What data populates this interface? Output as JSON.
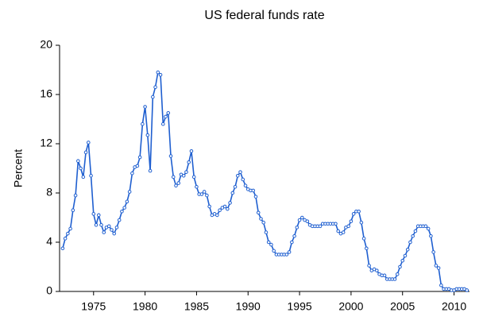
{
  "chart_data": {
    "type": "line",
    "title": "US federal funds rate",
    "y_label": "Percent",
    "x": [
      1972,
      1972.25,
      1972.5,
      1972.75,
      1973,
      1973.25,
      1973.5,
      1973.75,
      1974,
      1974.25,
      1974.5,
      1974.75,
      1975,
      1975.25,
      1975.5,
      1975.75,
      1976,
      1976.25,
      1976.5,
      1976.75,
      1977,
      1977.25,
      1977.5,
      1977.75,
      1978,
      1978.25,
      1978.5,
      1978.75,
      1979,
      1979.25,
      1979.5,
      1979.75,
      1980,
      1980.25,
      1980.5,
      1980.75,
      1981,
      1981.25,
      1981.5,
      1981.75,
      1982,
      1982.25,
      1982.5,
      1982.75,
      1983,
      1983.25,
      1983.5,
      1983.75,
      1984,
      1984.25,
      1984.5,
      1984.75,
      1985,
      1985.25,
      1985.5,
      1985.75,
      1986,
      1986.25,
      1986.5,
      1986.75,
      1987,
      1987.25,
      1987.5,
      1987.75,
      1988,
      1988.25,
      1988.5,
      1988.75,
      1989,
      1989.25,
      1989.5,
      1989.75,
      1990,
      1990.25,
      1990.5,
      1990.75,
      1991,
      1991.25,
      1991.5,
      1991.75,
      1992,
      1992.25,
      1992.5,
      1992.75,
      1993,
      1993.25,
      1993.5,
      1993.75,
      1994,
      1994.25,
      1994.5,
      1994.75,
      1995,
      1995.25,
      1995.5,
      1995.75,
      1996,
      1996.25,
      1996.5,
      1996.75,
      1997,
      1997.25,
      1997.5,
      1997.75,
      1998,
      1998.25,
      1998.5,
      1998.75,
      1999,
      1999.25,
      1999.5,
      1999.75,
      2000,
      2000.25,
      2000.5,
      2000.75,
      2001,
      2001.25,
      2001.5,
      2001.75,
      2002,
      2002.25,
      2002.5,
      2002.75,
      2003,
      2003.25,
      2003.5,
      2003.75,
      2004,
      2004.25,
      2004.5,
      2004.75,
      2005,
      2005.25,
      2005.5,
      2005.75,
      2006,
      2006.25,
      2006.5,
      2006.75,
      2007,
      2007.25,
      2007.5,
      2007.75,
      2008,
      2008.25,
      2008.5,
      2008.75,
      2009,
      2009.25,
      2009.5,
      2009.75,
      2010,
      2010.25,
      2010.5,
      2010.75,
      2011,
      2011.25
    ],
    "series": [
      {
        "name": "Federal funds rate",
        "color": "#1f5fd0",
        "values": [
          3.5,
          4.3,
          4.7,
          5.1,
          6.6,
          7.8,
          10.6,
          10.0,
          9.3,
          11.3,
          12.1,
          9.4,
          6.3,
          5.4,
          6.2,
          5.4,
          4.8,
          5.2,
          5.3,
          5.0,
          4.7,
          5.2,
          5.8,
          6.5,
          6.8,
          7.3,
          8.1,
          9.6,
          10.1,
          10.2,
          10.9,
          13.6,
          15.0,
          12.7,
          9.8,
          15.8,
          16.6,
          17.8,
          17.6,
          13.6,
          14.2,
          14.5,
          11.0,
          9.3,
          8.6,
          8.8,
          9.5,
          9.4,
          9.7,
          10.5,
          11.4,
          9.3,
          8.5,
          7.9,
          7.9,
          8.1,
          7.8,
          6.9,
          6.2,
          6.3,
          6.2,
          6.6,
          6.8,
          6.9,
          6.7,
          7.2,
          8.0,
          8.5,
          9.4,
          9.7,
          9.1,
          8.6,
          8.3,
          8.2,
          8.2,
          7.7,
          6.4,
          5.9,
          5.6,
          4.8,
          4.0,
          3.8,
          3.3,
          3.0,
          3.0,
          3.0,
          3.0,
          3.0,
          3.2,
          4.0,
          4.5,
          5.2,
          5.8,
          6.0,
          5.8,
          5.7,
          5.4,
          5.3,
          5.3,
          5.3,
          5.3,
          5.5,
          5.5,
          5.5,
          5.5,
          5.5,
          5.5,
          4.9,
          4.7,
          4.8,
          5.2,
          5.3,
          5.7,
          6.3,
          6.5,
          6.5,
          5.6,
          4.3,
          3.5,
          2.1,
          1.7,
          1.8,
          1.7,
          1.4,
          1.3,
          1.3,
          1.0,
          1.0,
          1.0,
          1.0,
          1.4,
          2.0,
          2.5,
          2.9,
          3.4,
          4.0,
          4.5,
          4.9,
          5.3,
          5.3,
          5.3,
          5.3,
          5.1,
          4.5,
          3.2,
          2.1,
          1.9,
          0.5,
          0.2,
          0.2,
          0.2,
          0.1,
          0.1,
          0.2,
          0.2,
          0.2,
          0.2,
          0.1
        ]
      }
    ],
    "xlim": [
      1971.7,
      2011.5
    ],
    "xticks": [
      1975,
      1980,
      1985,
      1990,
      1995,
      2000,
      2005,
      2010
    ],
    "ylim": [
      0,
      20
    ],
    "yticks": [
      0,
      4,
      8,
      12,
      16,
      20
    ],
    "grid": false,
    "markers": true
  }
}
